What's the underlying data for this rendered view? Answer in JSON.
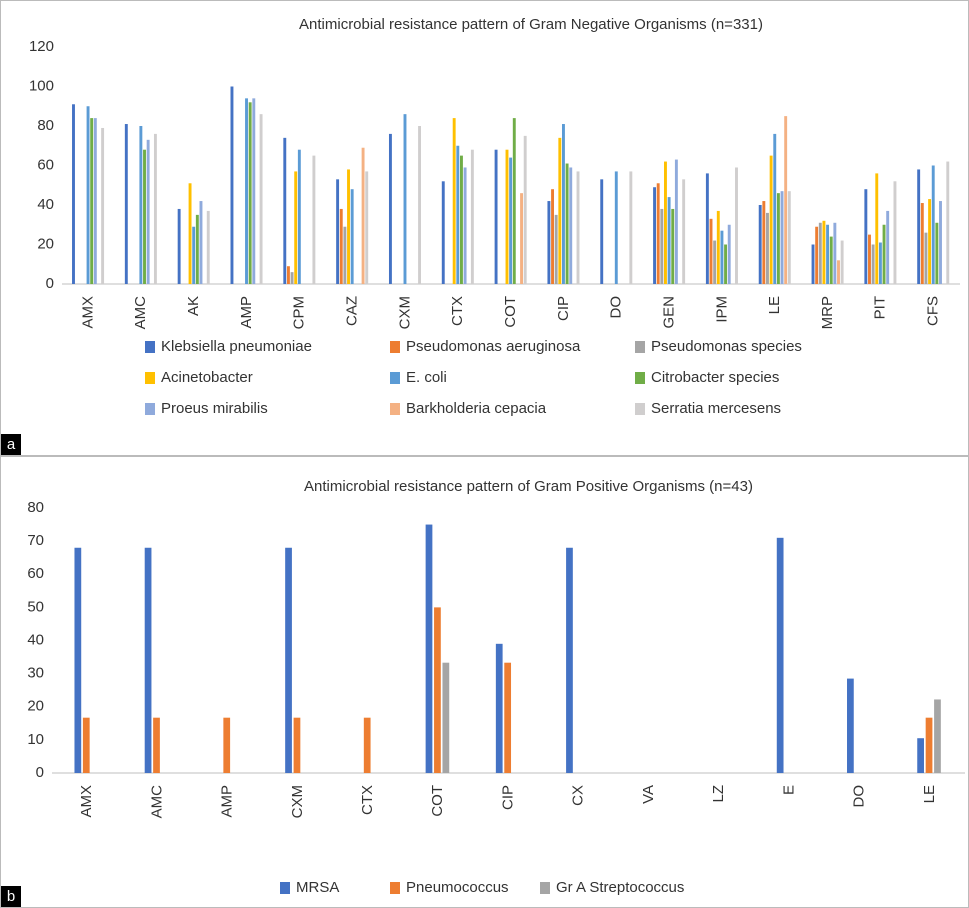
{
  "chart_data": [
    {
      "type": "bar",
      "title": "Antimicrobial resistance pattern of Gram Negative Organisms (n=331)",
      "panel_label": "a",
      "categories": [
        "AMX",
        "AMC",
        "AK",
        "AMP",
        "CPM",
        "CAZ",
        "CXM",
        "CTX",
        "COT",
        "CIP",
        "DO",
        "GEN",
        "IPM",
        "LE",
        "MRP",
        "PIT",
        "CFS"
      ],
      "series": [
        {
          "name": "Klebsiella pneumoniae",
          "color": "#4472c4",
          "values": [
            91,
            81,
            38,
            100,
            74,
            53,
            76,
            52,
            68,
            42,
            53,
            49,
            56,
            40,
            20,
            48,
            58
          ]
        },
        {
          "name": "Pseudomonas aeruginosa",
          "color": "#ed7d31",
          "values": [
            0,
            0,
            0,
            0,
            9,
            38,
            0,
            0,
            0,
            48,
            0,
            51,
            33,
            42,
            29,
            25,
            41
          ]
        },
        {
          "name": "Pseudomonas species",
          "color": "#a5a5a5",
          "values": [
            0,
            0,
            0,
            0,
            6,
            29,
            0,
            0,
            0,
            35,
            0,
            38,
            22,
            36,
            31,
            20,
            26
          ]
        },
        {
          "name": "Acinetobacter",
          "color": "#ffc000",
          "values": [
            0,
            0,
            51,
            0,
            57,
            58,
            0,
            84,
            68,
            74,
            0,
            62,
            37,
            65,
            32,
            56,
            43
          ]
        },
        {
          "name": "E. coli",
          "color": "#5b9bd5",
          "values": [
            90,
            80,
            29,
            94,
            68,
            48,
            86,
            70,
            64,
            81,
            57,
            44,
            27,
            76,
            30,
            21,
            60
          ]
        },
        {
          "name": "Citrobacter species",
          "color": "#70ad47",
          "values": [
            84,
            68,
            35,
            92,
            0,
            0,
            0,
            65,
            84,
            61,
            0,
            38,
            20,
            46,
            24,
            30,
            31
          ]
        },
        {
          "name": "Proeus mirabilis",
          "color": "#8faadc",
          "values": [
            84,
            73,
            42,
            94,
            0,
            0,
            0,
            59,
            0,
            59,
            0,
            63,
            30,
            47,
            31,
            37,
            42
          ]
        },
        {
          "name": "Barkholderia cepacia",
          "color": "#f4b183",
          "values": [
            0,
            0,
            0,
            0,
            0,
            69,
            0,
            0,
            46,
            0,
            0,
            0,
            0,
            85,
            12,
            0,
            0
          ]
        },
        {
          "name": "Serratia mercesens",
          "color": "#d0cece",
          "values": [
            79,
            76,
            37,
            86,
            65,
            57,
            80,
            68,
            75,
            57,
            57,
            53,
            59,
            47,
            22,
            52,
            62
          ]
        }
      ],
      "ylim": [
        0,
        120
      ],
      "yticks": [
        0,
        20,
        40,
        60,
        80,
        100,
        120
      ],
      "grid": false,
      "legend": "bottom"
    },
    {
      "type": "bar",
      "title": "Antimicrobial resistance pattern of Gram Positive Organisms (n=43)",
      "panel_label": "b",
      "categories": [
        "AMX",
        "AMC",
        "AMP",
        "CXM",
        "CTX",
        "COT",
        "CIP",
        "CX",
        "VA",
        "LZ",
        "E",
        "DO",
        "LE"
      ],
      "series": [
        {
          "name": "MRSA",
          "color": "#4472c4",
          "values": [
            68,
            68,
            0,
            68,
            0,
            75,
            39,
            68,
            0,
            0,
            71,
            28.5,
            10.5
          ]
        },
        {
          "name": "Pneumococcus",
          "color": "#ed7d31",
          "values": [
            16.7,
            16.7,
            16.7,
            16.7,
            16.7,
            50,
            33.3,
            0,
            0,
            0,
            0,
            0,
            16.7
          ]
        },
        {
          "name": "Gr A Streptococcus",
          "color": "#a5a5a5",
          "values": [
            0,
            0,
            0,
            0,
            0,
            33.3,
            0,
            0,
            0,
            0,
            0,
            0,
            22.2
          ]
        }
      ],
      "ylim": [
        0,
        80
      ],
      "yticks": [
        0,
        10,
        20,
        30,
        40,
        50,
        60,
        70,
        80
      ],
      "grid": false,
      "legend": "bottom"
    }
  ]
}
